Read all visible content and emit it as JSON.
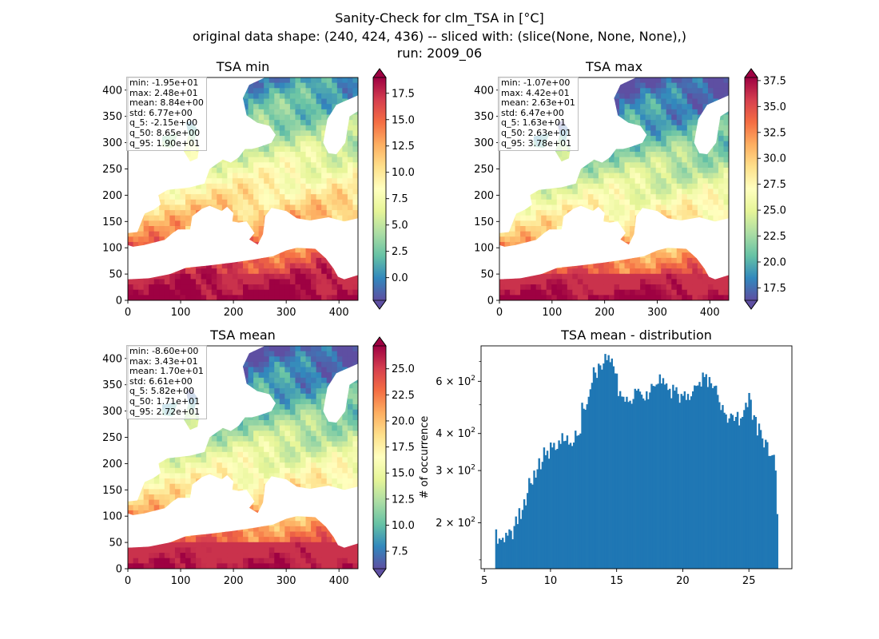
{
  "figure": {
    "title_lines": [
      "Sanity-Check for clm_TSA in [°C]",
      "original data shape: (240, 424, 436) -- sliced with: (slice(None, None, None),)",
      "run: 2009_06"
    ]
  },
  "chart_data": [
    {
      "type": "heatmap",
      "title": "TSA min",
      "x_ticks": [
        0,
        100,
        200,
        300,
        400
      ],
      "y_ticks": [
        0,
        50,
        100,
        150,
        200,
        250,
        300,
        350,
        400
      ],
      "xlim": [
        0,
        436
      ],
      "ylim": [
        0,
        424
      ],
      "colormap": "Spectral_r",
      "colorbar_ticks": [
        0.0,
        2.5,
        5.0,
        7.5,
        10.0,
        12.5,
        15.0,
        17.5
      ],
      "colorbar_tick_labels": [
        "0.0",
        "2.5",
        "5.0",
        "7.5",
        "10.0",
        "12.5",
        "15.0",
        "17.5"
      ],
      "colorbar_range": [
        -2.15,
        19.0
      ],
      "colorbar_extend": "both",
      "stats": [
        "min: -1.95e+01",
        "max: 2.48e+01",
        "mean: 8.84e+00",
        "std: 6.77e+00",
        "q_5: -2.15e+00",
        "q_50: 8.65e+00",
        "q_95: 1.90e+01"
      ]
    },
    {
      "type": "heatmap",
      "title": "TSA max",
      "x_ticks": [
        0,
        100,
        200,
        300,
        400
      ],
      "y_ticks": [
        0,
        50,
        100,
        150,
        200,
        250,
        300,
        350,
        400
      ],
      "xlim": [
        0,
        436
      ],
      "ylim": [
        0,
        424
      ],
      "colormap": "Spectral_r",
      "colorbar_ticks": [
        17.5,
        20.0,
        22.5,
        25.0,
        27.5,
        30.0,
        32.5,
        35.0,
        37.5
      ],
      "colorbar_tick_labels": [
        "17.5",
        "20.0",
        "22.5",
        "25.0",
        "27.5",
        "30.0",
        "32.5",
        "35.0",
        "37.5"
      ],
      "colorbar_range": [
        16.3,
        37.8
      ],
      "colorbar_extend": "both",
      "stats": [
        "min: -1.07e+00",
        "max: 4.42e+01",
        "mean: 2.63e+01",
        "std: 6.47e+00",
        "q_5: 1.63e+01",
        "q_50: 2.63e+01",
        "q_95: 3.78e+01"
      ]
    },
    {
      "type": "heatmap",
      "title": "TSA mean",
      "x_ticks": [
        0,
        100,
        200,
        300,
        400
      ],
      "y_ticks": [
        0,
        50,
        100,
        150,
        200,
        250,
        300,
        350,
        400
      ],
      "xlim": [
        0,
        436
      ],
      "ylim": [
        0,
        424
      ],
      "colormap": "Spectral_r",
      "colorbar_ticks": [
        7.5,
        10.0,
        12.5,
        15.0,
        17.5,
        20.0,
        22.5,
        25.0
      ],
      "colorbar_tick_labels": [
        "7.5",
        "10.0",
        "12.5",
        "15.0",
        "17.5",
        "20.0",
        "22.5",
        "25.0"
      ],
      "colorbar_range": [
        5.82,
        27.2
      ],
      "colorbar_extend": "both",
      "stats": [
        "min: -8.60e+00",
        "max: 3.43e+01",
        "mean: 1.70e+01",
        "std: 6.61e+00",
        "q_5: 5.82e+00",
        "q_50: 1.71e+01",
        "q_95: 2.72e+01"
      ]
    },
    {
      "type": "bar",
      "title": "TSA mean - distribution",
      "ylabel": "# of occurrence",
      "y_scale": "log",
      "xlim": [
        4.75,
        28.25
      ],
      "ylim": [
        140,
        790
      ],
      "x_ticks": [
        5,
        10,
        15,
        20,
        25
      ],
      "y_ticks": [
        200,
        300,
        400,
        600
      ],
      "y_tick_labels": [
        [
          "2",
          "2"
        ],
        [
          "3",
          "2"
        ],
        [
          "4",
          "2"
        ],
        [
          "6",
          "2"
        ]
      ],
      "bar_color": "#1f77b4",
      "bins_start": 5.82,
      "bins_end": 27.2,
      "bins_count": 171,
      "counts": [
        190,
        170,
        177,
        175,
        178,
        172,
        185,
        181,
        190,
        188,
        176,
        195,
        210,
        198,
        224,
        206,
        221,
        240,
        229,
        252,
        283,
        272,
        269,
        300,
        284,
        303,
        330,
        303,
        321,
        359,
        338,
        350,
        329,
        373,
        359,
        372,
        352,
        355,
        379,
        369,
        401,
        377,
        378,
        394,
        367,
        372,
        363,
        373,
        409,
        393,
        395,
        400,
        508,
        485,
        481,
        502,
        532,
        564,
        593,
        669,
        642,
        616,
        688,
        679,
        657,
        689,
        742,
        707,
        735,
        696,
        716,
        674,
        638,
        637,
        535,
        556,
        533,
        532,
        512,
        532,
        511,
        516,
        504,
        523,
        566,
        558,
        566,
        554,
        541,
        525,
        517,
        555,
        522,
        550,
        588,
        579,
        577,
        585,
        589,
        633,
        590,
        615,
        585,
        590,
        561,
        566,
        526,
        584,
        558,
        573,
        544,
        508,
        544,
        536,
        555,
        519,
        544,
        519,
        534,
        555,
        581,
        579,
        581,
        597,
        576,
        642,
        620,
        634,
        574,
        620,
        591,
        569,
        578,
        580,
        540,
        510,
        480,
        499,
        470,
        464,
        435,
        450,
        467,
        462,
        441,
        455,
        473,
        426,
        450,
        455,
        480,
        508,
        491,
        548,
        520,
        445,
        461,
        455,
        394,
        432,
        411,
        385,
        359,
        381,
        374,
        336,
        336,
        338,
        339,
        300,
        214
      ]
    }
  ]
}
